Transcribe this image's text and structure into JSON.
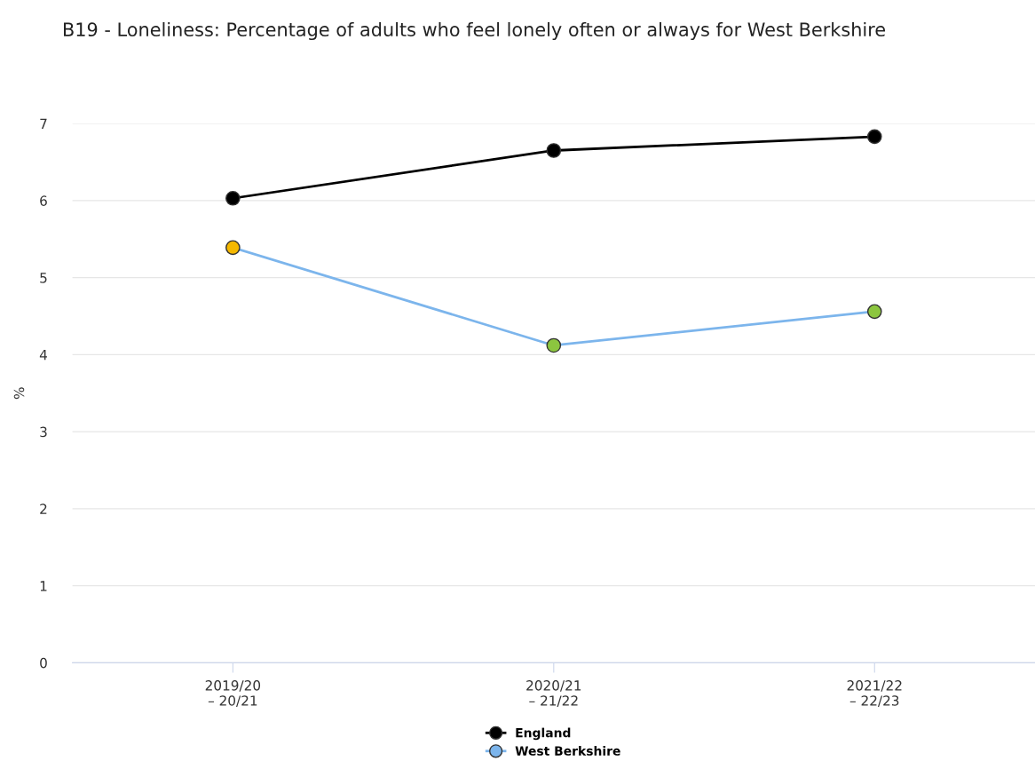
{
  "chart_data": {
    "type": "line",
    "title": "B19 - Loneliness: Percentage of adults who feel lonely often or always for West Berkshire",
    "ylabel": "%",
    "categories": [
      "2019/20\n– 20/21",
      "2020/21\n– 21/22",
      "2021/22\n– 22/23"
    ],
    "series": [
      {
        "name": "England",
        "color": "#000000",
        "values": [
          6.03,
          6.65,
          6.83
        ]
      },
      {
        "name": "West Berkshire",
        "color": "#7cb5ec",
        "colors": [
          "#f5b800",
          "#8cc63f",
          "#8cc63f"
        ],
        "values": [
          5.39,
          4.12,
          4.56
        ]
      }
    ],
    "ylim": [
      0,
      7
    ],
    "yticks": [
      0,
      1,
      2,
      3,
      4,
      5,
      6,
      7
    ],
    "grid": "y",
    "legend": "bottom",
    "marker": "circle",
    "line_style": "solid"
  }
}
